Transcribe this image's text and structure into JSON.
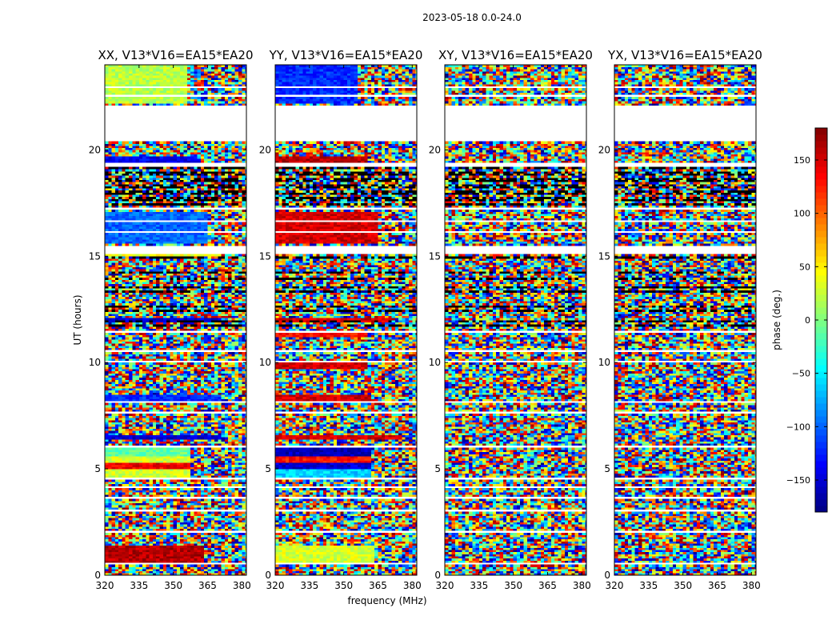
{
  "figure_title": "2023-05-18 0.0-24.0",
  "chart_data": {
    "type": "heatmap",
    "title": "2023-05-18 0.0-24.0",
    "xlabel": "frequency (MHz)",
    "ylabel": "UT (hours)",
    "xlim": [
      320,
      382
    ],
    "ylim": [
      0,
      24
    ],
    "x_ticks": [
      320,
      335,
      350,
      365,
      380
    ],
    "y_ticks": [
      0,
      5,
      10,
      15,
      20
    ],
    "colorbar": {
      "label": "phase (deg.)",
      "range": [
        -180,
        180
      ],
      "ticks": [
        -150,
        -100,
        -50,
        0,
        50,
        100,
        150
      ],
      "colormap": "jet",
      "colors": [
        "#00007f",
        "#0000ff",
        "#007fff",
        "#00ffff",
        "#7fff7f",
        "#ffff00",
        "#ff7f00",
        "#ff0000",
        "#7f0000"
      ]
    },
    "no_data_hours": [
      [
        0.5,
        0.55
      ],
      [
        2.0,
        2.05
      ],
      [
        3.0,
        3.05
      ],
      [
        3.6,
        3.65
      ],
      [
        4.1,
        4.15
      ],
      [
        4.5,
        4.6
      ],
      [
        6.0,
        6.1
      ],
      [
        7.6,
        7.65
      ],
      [
        8.1,
        8.15
      ],
      [
        10.0,
        10.05
      ],
      [
        10.5,
        10.55
      ],
      [
        11.4,
        11.45
      ],
      [
        15.1,
        15.5
      ],
      [
        16.1,
        16.15
      ],
      [
        16.6,
        16.65
      ],
      [
        17.2,
        17.3
      ],
      [
        19.2,
        19.35
      ],
      [
        20.4,
        22.1
      ],
      [
        22.5,
        22.55
      ],
      [
        22.9,
        22.95
      ]
    ],
    "heavy_flag_hours": [
      11.7,
      11.9,
      12.4,
      12.6,
      13.3,
      13.5,
      13.9,
      14.2,
      14.9,
      17.4,
      17.55,
      17.7,
      17.85,
      18.0,
      18.15,
      18.3,
      18.45,
      18.6,
      18.75,
      18.9,
      19.05
    ],
    "panels": [
      {
        "title": "XX, V13*V16=EA15*EA20",
        "coherent_bands": [
          {
            "hours": [
              0.55,
              1.4
            ],
            "phase": 160,
            "to_mhz": 363
          },
          {
            "hours": [
              4.6,
              5.0
            ],
            "phase": 30,
            "to_mhz": 357
          },
          {
            "hours": [
              5.0,
              5.3
            ],
            "phase": 140,
            "to_mhz": 357
          },
          {
            "hours": [
              5.3,
              5.6
            ],
            "phase": 30,
            "to_mhz": 357
          },
          {
            "hours": [
              5.6,
              6.0
            ],
            "phase": -10,
            "to_mhz": 357
          },
          {
            "hours": [
              6.4,
              6.6
            ],
            "phase": -150,
            "to_mhz": 370
          },
          {
            "hours": [
              8.2,
              8.5
            ],
            "phase": -120,
            "to_mhz": 370
          },
          {
            "hours": [
              11.9,
              12.1
            ],
            "phase": -150,
            "to_mhz": 370
          },
          {
            "hours": [
              15.0,
              15.1
            ],
            "phase": 40,
            "to_mhz": 370
          },
          {
            "hours": [
              15.6,
              17.1
            ],
            "phase": -100,
            "to_mhz": 364
          },
          {
            "hours": [
              19.4,
              19.7
            ],
            "phase": -140,
            "to_mhz": 360
          },
          {
            "hours": [
              22.2,
              24.0
            ],
            "phase": 20,
            "to_mhz": 355
          }
        ]
      },
      {
        "title": "YY, V13*V16=EA15*EA20",
        "coherent_bands": [
          {
            "hours": [
              0.55,
              1.4
            ],
            "phase": 30,
            "to_mhz": 363
          },
          {
            "hours": [
              4.6,
              5.0
            ],
            "phase": -60,
            "to_mhz": 362
          },
          {
            "hours": [
              5.0,
              5.3
            ],
            "phase": -150,
            "to_mhz": 362
          },
          {
            "hours": [
              5.3,
              5.6
            ],
            "phase": 130,
            "to_mhz": 362
          },
          {
            "hours": [
              5.6,
              6.0
            ],
            "phase": -160,
            "to_mhz": 362
          },
          {
            "hours": [
              6.4,
              6.6
            ],
            "phase": 150,
            "to_mhz": 375
          },
          {
            "hours": [
              8.2,
              8.5
            ],
            "phase": 150,
            "to_mhz": 362
          },
          {
            "hours": [
              9.7,
              10.0
            ],
            "phase": 150,
            "to_mhz": 360
          },
          {
            "hours": [
              11.2,
              11.4
            ],
            "phase": 130,
            "to_mhz": 360
          },
          {
            "hours": [
              11.9,
              12.1
            ],
            "phase": 150,
            "to_mhz": 370
          },
          {
            "hours": [
              15.6,
              17.1
            ],
            "phase": 150,
            "to_mhz": 364
          },
          {
            "hours": [
              19.4,
              19.7
            ],
            "phase": 160,
            "to_mhz": 360
          },
          {
            "hours": [
              22.2,
              24.0
            ],
            "phase": -120,
            "to_mhz": 355
          }
        ]
      },
      {
        "title": "XY, V13*V16=EA15*EA20",
        "coherent_bands": []
      },
      {
        "title": "YX, V13*V16=EA15*EA20",
        "coherent_bands": []
      }
    ]
  }
}
